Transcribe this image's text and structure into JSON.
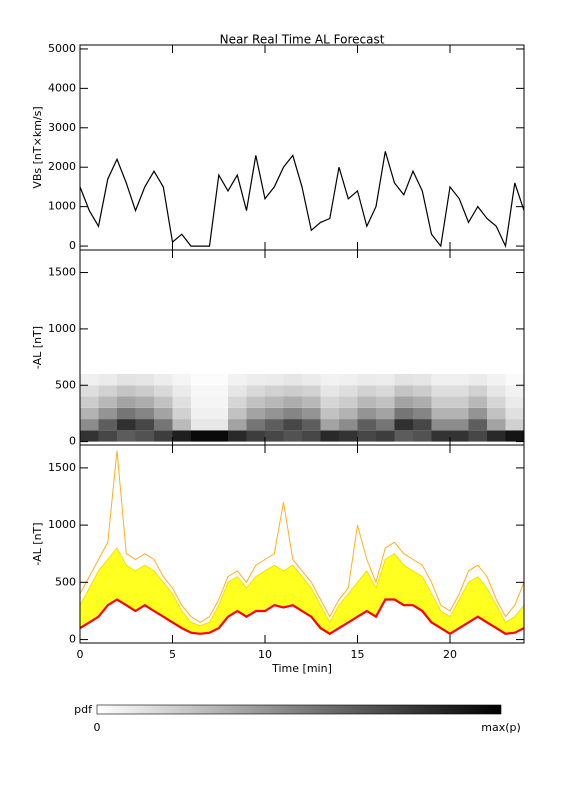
{
  "chart_data": [
    {
      "type": "line",
      "title": "Near Real Time AL Forecast",
      "y_label": "VBs [nT×km/s]",
      "x": [
        0,
        0.5,
        1,
        1.5,
        2,
        2.5,
        3,
        3.5,
        4,
        4.5,
        5,
        5.5,
        6,
        6.5,
        7,
        7.5,
        8,
        8.5,
        9,
        9.5,
        10,
        10.5,
        11,
        11.5,
        12,
        12.5,
        13,
        13.5,
        14,
        14.5,
        15,
        15.5,
        16,
        16.5,
        17,
        17.5,
        18,
        18.5,
        19,
        19.5,
        20,
        20.5,
        21,
        21.5,
        22,
        22.5,
        23,
        23.5,
        24
      ],
      "series": [
        {
          "color": "#000000",
          "values": [
            1500,
            900,
            500,
            1700,
            2200,
            1600,
            900,
            1500,
            1900,
            1500,
            100,
            300,
            0,
            0,
            0,
            1800,
            1400,
            1800,
            900,
            2300,
            1200,
            1500,
            2000,
            2300,
            1500,
            400,
            600,
            700,
            2000,
            1200,
            1400,
            500,
            1000,
            2400,
            1600,
            1300,
            1900,
            1400,
            300,
            0,
            1500,
            1200,
            600,
            1000,
            700,
            500,
            0,
            1600,
            900
          ]
        }
      ],
      "xlim": [
        0,
        24
      ],
      "ylim": [
        -100,
        5100
      ],
      "yticks": [
        0,
        1000,
        2000,
        3000,
        4000,
        5000
      ]
    },
    {
      "type": "heatmap",
      "y_label": "-AL [nT]",
      "x_bins": [
        0,
        1,
        2,
        3,
        4,
        5,
        6,
        7,
        8,
        9,
        10,
        11,
        12,
        13,
        14,
        15,
        16,
        17,
        18,
        19,
        20,
        21,
        22,
        23,
        24
      ],
      "y_bins": [
        0,
        100,
        200,
        300,
        400,
        500,
        600
      ],
      "values": [
        [
          0.8,
          0.72,
          0.64,
          0.68,
          0.76,
          0.88,
          0.96,
          0.96,
          0.84,
          0.76,
          0.72,
          0.68,
          0.72,
          0.84,
          0.8,
          0.72,
          0.76,
          0.64,
          0.68,
          0.8,
          0.8,
          0.72,
          0.84,
          0.92
        ],
        [
          0.45,
          0.63,
          0.81,
          0.72,
          0.54,
          0.27,
          0.09,
          0.09,
          0.36,
          0.54,
          0.63,
          0.72,
          0.63,
          0.36,
          0.45,
          0.63,
          0.54,
          0.81,
          0.72,
          0.45,
          0.45,
          0.63,
          0.36,
          0.18
        ],
        [
          0.3,
          0.42,
          0.54,
          0.48,
          0.36,
          0.18,
          0.06,
          0.06,
          0.24,
          0.36,
          0.42,
          0.48,
          0.42,
          0.24,
          0.3,
          0.42,
          0.36,
          0.54,
          0.48,
          0.3,
          0.3,
          0.42,
          0.24,
          0.12
        ],
        [
          0.2,
          0.28,
          0.36,
          0.32,
          0.24,
          0.12,
          0.04,
          0.04,
          0.16,
          0.24,
          0.28,
          0.32,
          0.28,
          0.16,
          0.2,
          0.28,
          0.24,
          0.36,
          0.32,
          0.2,
          0.2,
          0.28,
          0.16,
          0.08
        ],
        [
          0.13,
          0.18,
          0.23,
          0.2,
          0.15,
          0.08,
          0.03,
          0.03,
          0.1,
          0.15,
          0.18,
          0.2,
          0.18,
          0.1,
          0.13,
          0.18,
          0.15,
          0.23,
          0.2,
          0.13,
          0.13,
          0.18,
          0.1,
          0.05
        ],
        [
          0.06,
          0.08,
          0.11,
          0.1,
          0.07,
          0.04,
          0.01,
          0.01,
          0.05,
          0.07,
          0.08,
          0.1,
          0.08,
          0.05,
          0.06,
          0.08,
          0.07,
          0.11,
          0.1,
          0.06,
          0.06,
          0.08,
          0.05,
          0.02
        ]
      ],
      "xlim": [
        0,
        24
      ],
      "ylim": [
        -30,
        1700
      ],
      "yticks": [
        0,
        500,
        1000,
        1500
      ]
    },
    {
      "type": "band",
      "y_label": "-AL [nT]",
      "x_label": "Time [min]",
      "x": [
        0,
        0.5,
        1,
        1.5,
        2,
        2.5,
        3,
        3.5,
        4,
        4.5,
        5,
        5.5,
        6,
        6.5,
        7,
        7.5,
        8,
        8.5,
        9,
        9.5,
        10,
        10.5,
        11,
        11.5,
        12,
        12.5,
        13,
        13.5,
        14,
        14.5,
        15,
        15.5,
        16,
        16.5,
        17,
        17.5,
        18,
        18.5,
        19,
        19.5,
        20,
        20.5,
        21,
        21.5,
        22,
        22.5,
        23,
        23.5,
        24
      ],
      "series": [
        {
          "color": "#ffb020",
          "values": [
            400,
            550,
            700,
            850,
            1650,
            750,
            700,
            750,
            700,
            550,
            450,
            300,
            200,
            150,
            200,
            350,
            550,
            600,
            500,
            650,
            700,
            750,
            1200,
            700,
            600,
            500,
            350,
            200,
            350,
            450,
            1000,
            700,
            500,
            800,
            850,
            750,
            700,
            650,
            500,
            300,
            250,
            400,
            600,
            650,
            550,
            350,
            200,
            300,
            500
          ]
        },
        {
          "color": "#f5e000",
          "fill": "#ffff20",
          "values": [
            300,
            450,
            600,
            700,
            800,
            650,
            600,
            650,
            600,
            500,
            400,
            250,
            150,
            120,
            150,
            300,
            500,
            550,
            450,
            550,
            600,
            650,
            600,
            650,
            550,
            450,
            300,
            150,
            300,
            400,
            500,
            600,
            450,
            700,
            750,
            650,
            600,
            550,
            400,
            250,
            200,
            350,
            500,
            550,
            450,
            300,
            150,
            200,
            300
          ]
        },
        {
          "color": "#ff0000",
          "values": [
            100,
            150,
            200,
            300,
            350,
            300,
            250,
            300,
            250,
            200,
            150,
            100,
            60,
            50,
            60,
            100,
            200,
            250,
            200,
            250,
            250,
            300,
            280,
            300,
            250,
            200,
            100,
            50,
            100,
            150,
            200,
            250,
            200,
            350,
            350,
            300,
            300,
            250,
            150,
            100,
            50,
            100,
            150,
            200,
            150,
            100,
            50,
            60,
            100
          ]
        }
      ],
      "xlim": [
        0,
        24
      ],
      "ylim": [
        -30,
        1700
      ],
      "yticks": [
        0,
        500,
        1000,
        1500
      ],
      "xticks": [
        0,
        5,
        10,
        15,
        20
      ]
    }
  ],
  "colorbar": {
    "label": "pdf",
    "min_label": "0",
    "max_label": "max(p)"
  }
}
